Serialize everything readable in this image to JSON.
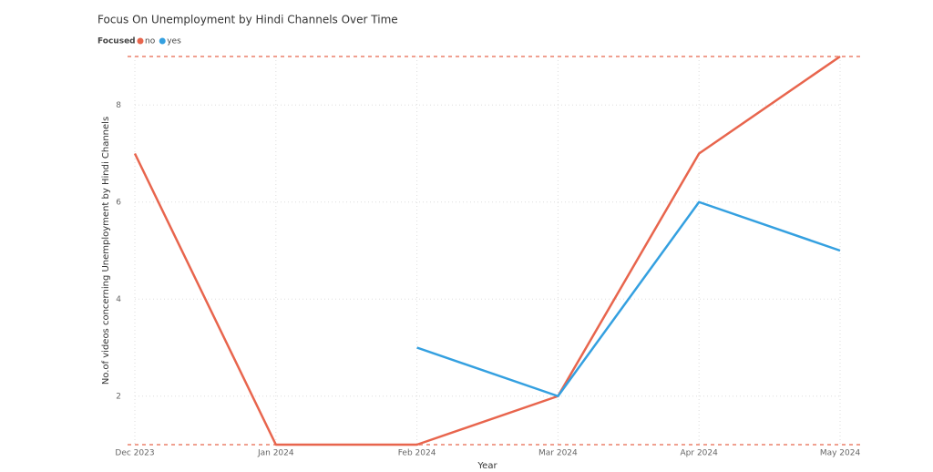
{
  "chart_data": {
    "type": "line",
    "title": "Focus On Unemployment by Hindi Channels Over Time",
    "legend_title": "Focused",
    "x_label": "Year",
    "y_label": "No.of videos concerning Unemployment by Hindi Channels",
    "categories": [
      "Dec 2023",
      "Jan 2024",
      "Feb 2024",
      "Mar 2024",
      "Apr 2024",
      "May 2024"
    ],
    "series": [
      {
        "name": "no",
        "color": "#e8654d",
        "values": [
          7,
          1,
          1,
          2,
          7,
          9
        ]
      },
      {
        "name": "yes",
        "color": "#34a0e0",
        "values": [
          null,
          null,
          3,
          2,
          6,
          5
        ]
      }
    ],
    "ylim": [
      1,
      9
    ],
    "yticks": [
      2,
      4,
      6,
      8
    ],
    "grid": true
  }
}
